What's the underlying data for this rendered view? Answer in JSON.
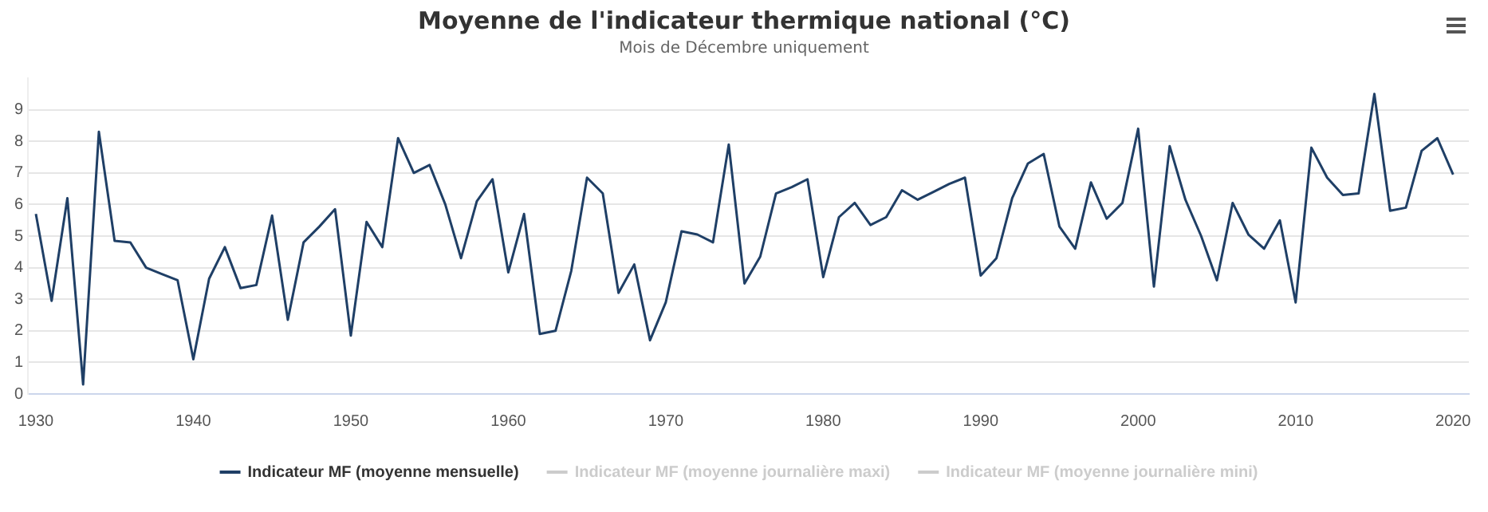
{
  "chart_data": {
    "type": "line",
    "title": "Moyenne de l'indicateur thermique national (°C)",
    "subtitle": "Mois de Décembre uniquement",
    "x": [
      1930,
      1931,
      1932,
      1933,
      1934,
      1935,
      1936,
      1937,
      1938,
      1939,
      1940,
      1941,
      1942,
      1943,
      1944,
      1945,
      1946,
      1947,
      1948,
      1949,
      1950,
      1951,
      1952,
      1953,
      1954,
      1955,
      1956,
      1957,
      1958,
      1959,
      1960,
      1961,
      1962,
      1963,
      1964,
      1965,
      1966,
      1967,
      1968,
      1969,
      1970,
      1971,
      1972,
      1973,
      1974,
      1975,
      1976,
      1977,
      1978,
      1979,
      1980,
      1981,
      1982,
      1983,
      1984,
      1985,
      1986,
      1987,
      1988,
      1989,
      1990,
      1991,
      1992,
      1993,
      1994,
      1995,
      1996,
      1997,
      1998,
      1999,
      2000,
      2001,
      2002,
      2003,
      2004,
      2005,
      2006,
      2007,
      2008,
      2009,
      2010,
      2011,
      2012,
      2013,
      2014,
      2015,
      2016,
      2017,
      2018,
      2019,
      2020
    ],
    "series": [
      {
        "name": "Indicateur MF (moyenne mensuelle)",
        "color": "#1f3f66",
        "values": [
          5.7,
          2.95,
          6.2,
          0.3,
          8.3,
          4.85,
          4.8,
          4.0,
          3.8,
          3.6,
          1.1,
          3.65,
          4.65,
          3.35,
          3.45,
          5.65,
          2.35,
          4.8,
          5.3,
          5.85,
          1.85,
          5.45,
          4.65,
          8.1,
          7.0,
          7.25,
          6.0,
          4.3,
          6.1,
          6.8,
          3.85,
          5.7,
          1.9,
          2.0,
          3.9,
          6.85,
          6.35,
          3.2,
          4.1,
          1.7,
          2.9,
          5.15,
          5.05,
          4.8,
          7.9,
          3.5,
          4.35,
          6.35,
          6.55,
          6.8,
          3.7,
          5.6,
          6.05,
          5.35,
          5.6,
          6.45,
          6.15,
          6.4,
          6.65,
          6.85,
          3.75,
          4.3,
          6.2,
          7.3,
          7.6,
          5.3,
          4.6,
          6.7,
          5.55,
          6.05,
          8.4,
          3.4,
          7.85,
          6.15,
          5.0,
          3.6,
          6.05,
          5.05,
          4.6,
          5.5,
          2.9,
          7.8,
          6.85,
          6.3,
          6.35,
          9.5,
          5.8,
          5.9,
          7.7,
          8.1,
          6.95
        ]
      },
      {
        "name": "Indicateur MF (moyenne journalière maxi)",
        "color": "#cccccc",
        "values": [
          null,
          null,
          null,
          null,
          null,
          null,
          null,
          null,
          null,
          null,
          null,
          null,
          null,
          null,
          null,
          null,
          null,
          null,
          null,
          null,
          null,
          null,
          null,
          null,
          null,
          null,
          null,
          null,
          null,
          null,
          null,
          null,
          null,
          null,
          null,
          null,
          null,
          null,
          null,
          null,
          null,
          null,
          null,
          null,
          null,
          null,
          null,
          null,
          null,
          null,
          null,
          null,
          null,
          null,
          null,
          null,
          null,
          null,
          null,
          null,
          null,
          null,
          null,
          null,
          null,
          null,
          null,
          null,
          null,
          null,
          null,
          null,
          null,
          null,
          null,
          null,
          null,
          null,
          null,
          null,
          null,
          null,
          null,
          null,
          null,
          null,
          null,
          null,
          null,
          null,
          null
        ]
      },
      {
        "name": "Indicateur MF (moyenne journalière mini)",
        "color": "#cccccc",
        "values": [
          null,
          null,
          null,
          null,
          null,
          null,
          null,
          null,
          null,
          null,
          null,
          null,
          null,
          null,
          null,
          null,
          null,
          null,
          null,
          null,
          null,
          null,
          null,
          null,
          null,
          null,
          null,
          null,
          null,
          null,
          null,
          null,
          null,
          null,
          null,
          null,
          null,
          null,
          null,
          null,
          null,
          null,
          null,
          null,
          null,
          null,
          null,
          null,
          null,
          null,
          null,
          null,
          null,
          null,
          null,
          null,
          null,
          null,
          null,
          null,
          null,
          null,
          null,
          null,
          null,
          null,
          null,
          null,
          null,
          null,
          null,
          null,
          null,
          null,
          null,
          null,
          null,
          null,
          null,
          null,
          null,
          null,
          null,
          null,
          null,
          null,
          null,
          null,
          null,
          null,
          null
        ]
      }
    ],
    "xlim": [
      1929.5,
      2021
    ],
    "xticks": [
      1930,
      1940,
      1950,
      1960,
      1970,
      1980,
      1990,
      2000,
      2010,
      2020
    ],
    "ylim": [
      0,
      10
    ],
    "yticks": [
      0,
      1,
      2,
      3,
      4,
      5,
      6,
      7,
      8,
      9
    ],
    "grid": "y",
    "legend": "bottom",
    "marker": "none",
    "line_style": "solid"
  }
}
